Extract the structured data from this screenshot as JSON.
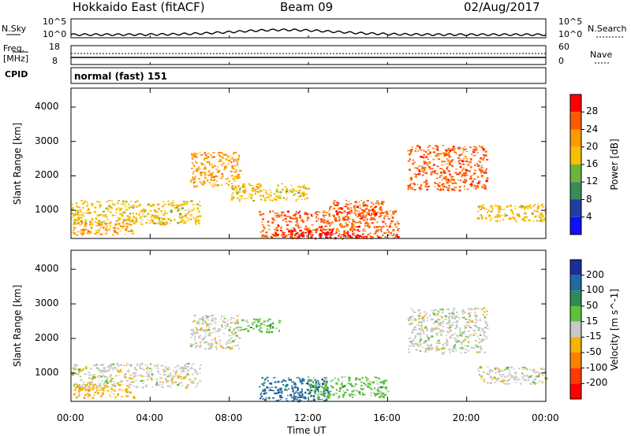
{
  "header": {
    "station": "Hokkaido East (fitACF)",
    "beam": "Beam 09",
    "date": "02/Aug/2017"
  },
  "noise_panel": {
    "left_label": "N.Sky",
    "right_label": "N.Search",
    "left_ticks": [
      "10^5",
      "10^0"
    ],
    "right_ticks": [
      "10^5",
      "10^0"
    ]
  },
  "freq_panel": {
    "left_label": "Freq.",
    "left_unit": "[MHz]",
    "right_label": "Nave",
    "left_ticks": [
      "18",
      "8"
    ],
    "right_ticks": [
      "60",
      "0"
    ]
  },
  "cpid_panel": {
    "label": "CPID",
    "value": "normal (fast) 151"
  },
  "chart_data": [
    {
      "type": "heatmap",
      "name": "power",
      "xlabel": "Time UT",
      "ylabel": "Slant Range [km]",
      "xticks": [
        "00:00",
        "04:00",
        "08:00",
        "12:00",
        "16:00",
        "20:00",
        "00:00"
      ],
      "yticks": [
        1000,
        2000,
        3000,
        4000
      ],
      "xlim_hours": [
        0,
        24
      ],
      "ylim_km": [
        180,
        4550
      ],
      "colorbar": {
        "label": "Power [dB]",
        "ticks": [
          "28",
          "24",
          "20",
          "16",
          "12",
          "8",
          "4"
        ],
        "colors": [
          "#ff0000",
          "#ff5a00",
          "#ff9a00",
          "#f5c000",
          "#6db33f",
          "#3a8a5a",
          "#1e3fa0",
          "#1010ff"
        ]
      },
      "regions": [
        {
          "t0": 0.0,
          "t1": 6.5,
          "r0": 600,
          "r1": 1300,
          "level": 3
        },
        {
          "t0": 0.0,
          "t1": 3.2,
          "r0": 300,
          "r1": 700,
          "level": 2
        },
        {
          "t0": 6.0,
          "t1": 8.5,
          "r0": 1700,
          "r1": 2700,
          "level": 2
        },
        {
          "t0": 9.5,
          "t1": 16.5,
          "r0": 200,
          "r1": 1000,
          "level": 1
        },
        {
          "t0": 10.0,
          "t1": 15.0,
          "r0": 200,
          "r1": 450,
          "level": 0
        },
        {
          "t0": 13.0,
          "t1": 16.0,
          "r0": 800,
          "r1": 1300,
          "level": 1
        },
        {
          "t0": 17.0,
          "t1": 21.0,
          "r0": 1600,
          "r1": 2900,
          "level": 1
        },
        {
          "t0": 20.5,
          "t1": 24.0,
          "r0": 700,
          "r1": 1200,
          "level": 3
        },
        {
          "t0": 8.0,
          "t1": 12.0,
          "r0": 1300,
          "r1": 1800,
          "level": 3
        }
      ]
    },
    {
      "type": "heatmap",
      "name": "velocity",
      "xlabel": "Time UT",
      "ylabel": "Slant Range [km]",
      "xticks": [
        "00:00",
        "04:00",
        "08:00",
        "12:00",
        "16:00",
        "20:00",
        "00:00"
      ],
      "yticks": [
        1000,
        2000,
        3000,
        4000
      ],
      "xlim_hours": [
        0,
        24
      ],
      "ylim_km": [
        180,
        4550
      ],
      "colorbar": {
        "label": "Velocity [m s^-1]",
        "ticks": [
          "200",
          "100",
          "50",
          "15",
          "-15",
          "-50",
          "-100",
          "-200"
        ],
        "colors": [
          "#1a2f9a",
          "#1f6aa0",
          "#2e8b57",
          "#5dc23a",
          "#c8c8c8",
          "#f4b400",
          "#ff7f00",
          "#ff3a00",
          "#ff0000"
        ]
      },
      "regions": [
        {
          "t0": 0.0,
          "t1": 6.5,
          "r0": 600,
          "r1": 1300,
          "level": 4
        },
        {
          "t0": 0.0,
          "t1": 3.2,
          "r0": 300,
          "r1": 700,
          "level": 5
        },
        {
          "t0": 6.0,
          "t1": 8.5,
          "r0": 1700,
          "r1": 2700,
          "level": 4
        },
        {
          "t0": 9.5,
          "t1": 13.0,
          "r0": 200,
          "r1": 900,
          "level": 1
        },
        {
          "t0": 12.0,
          "t1": 16.0,
          "r0": 300,
          "r1": 900,
          "level": 3
        },
        {
          "t0": 17.0,
          "t1": 21.0,
          "r0": 1600,
          "r1": 2900,
          "level": 4
        },
        {
          "t0": 20.5,
          "t1": 24.0,
          "r0": 700,
          "r1": 1200,
          "level": 4
        },
        {
          "t0": 8.5,
          "t1": 10.5,
          "r0": 2200,
          "r1": 2600,
          "level": 3
        }
      ]
    }
  ]
}
